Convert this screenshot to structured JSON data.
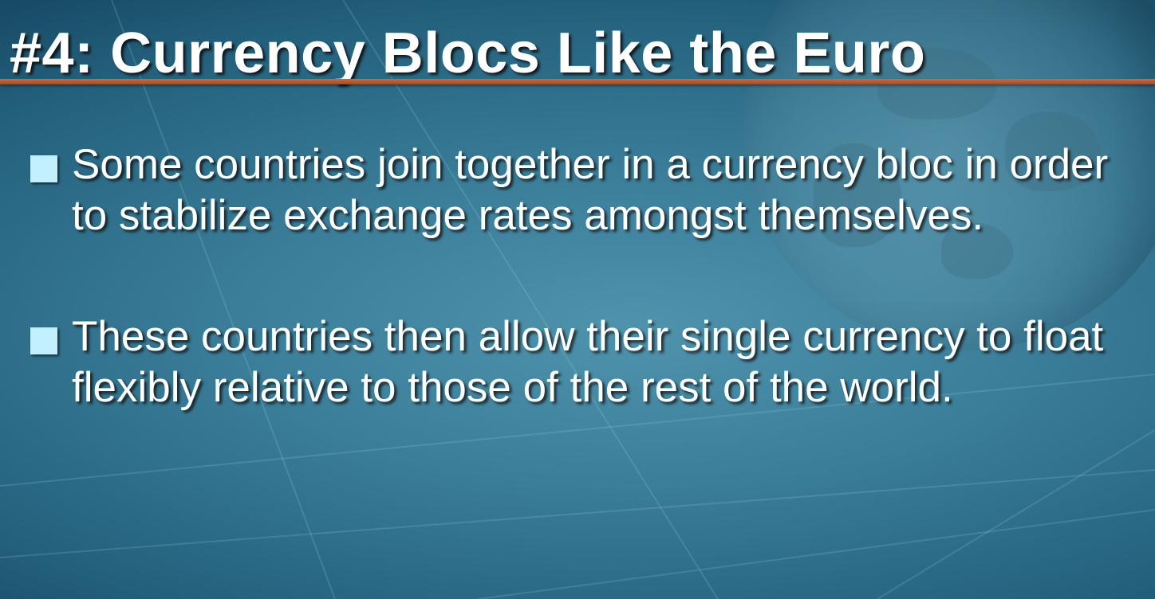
{
  "slide": {
    "title": "#4: Currency Blocs Like the Euro",
    "bullets": [
      {
        "text": "Some countries join together in a currency bloc in order to stabilize exchange rates  amongst themselves."
      },
      {
        "text": "These countries then allow their single currency to float flexibly relative to those of the rest of the world."
      }
    ]
  },
  "colors": {
    "background": "#2f7390",
    "title_rule": "#c55a2a",
    "bullet_marker": "#c3f0ff",
    "text": "#ffffff"
  }
}
